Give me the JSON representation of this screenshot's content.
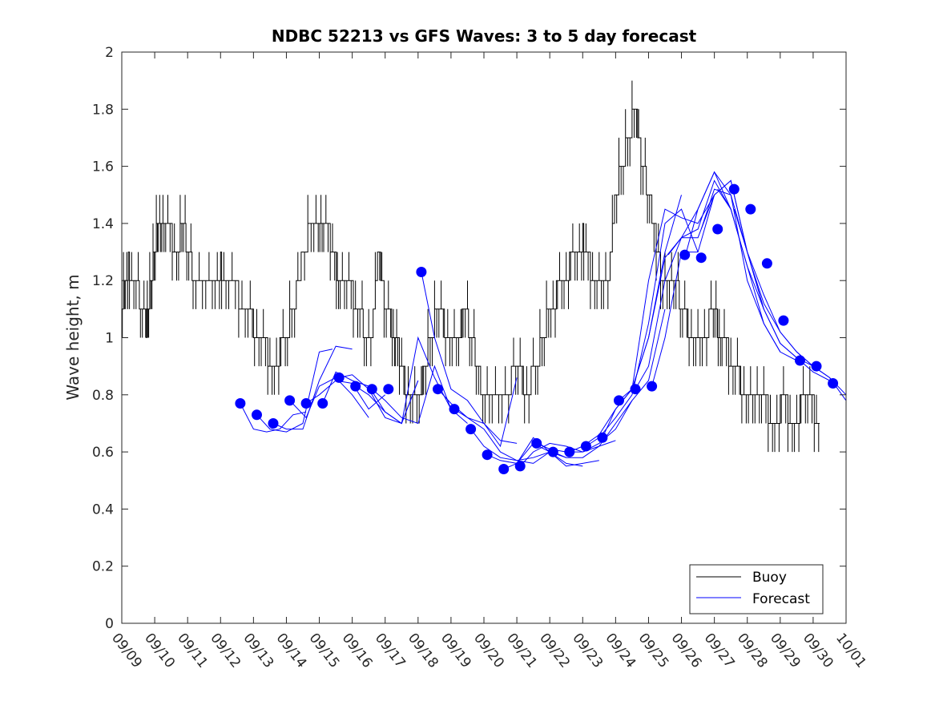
{
  "chart_data": {
    "type": "line",
    "title": "NDBC 52213 vs GFS Waves: 3 to 5 day forecast",
    "xlabel": "",
    "ylabel": "Wave height, m",
    "x_tick_labels": [
      "09/09",
      "09/10",
      "09/11",
      "09/12",
      "09/13",
      "09/14",
      "09/15",
      "09/16",
      "09/17",
      "09/18",
      "09/19",
      "09/20",
      "09/21",
      "09/22",
      "09/23",
      "09/24",
      "09/25",
      "09/26",
      "09/27",
      "09/28",
      "09/29",
      "09/30",
      "10/01"
    ],
    "xlim_days": [
      0,
      22
    ],
    "ylim": [
      0,
      2
    ],
    "y_ticks": [
      "0",
      "0.2",
      "0.4",
      "0.6",
      "0.8",
      "1",
      "1.2",
      "1.4",
      "1.6",
      "1.8",
      "2"
    ],
    "legend": [
      {
        "label": "Buoy",
        "color": "#000000"
      },
      {
        "label": "Forecast",
        "color": "#0000ff"
      }
    ],
    "legend_position": "bottom-right",
    "colors": {
      "buoy": "#000000",
      "forecast": "#0000ff",
      "axes": "#262626"
    },
    "series": [
      {
        "name": "Buoy",
        "x_days": [
          0,
          0.1,
          0.2,
          0.4,
          0.6,
          0.75,
          0.8,
          0.9,
          1,
          1.1,
          1.2,
          1.3,
          1.5,
          1.7,
          1.85,
          2,
          2.2,
          2.5,
          2.8,
          3,
          3.2,
          3.5,
          3.8,
          4,
          4.2,
          4.4,
          4.6,
          4.8,
          5,
          5.2,
          5.5,
          5.8,
          6,
          6.1,
          6.3,
          6.5,
          6.6,
          6.8,
          7,
          7.2,
          7.4,
          7.6,
          7.8,
          8,
          8.2,
          8.3,
          8.4,
          8.6,
          8.8,
          9,
          9.2,
          9.4,
          9.6,
          9.8,
          10,
          10.2,
          10.4,
          10.6,
          10.8,
          11,
          11.2,
          11.5,
          11.8,
          12,
          12.2,
          12.4,
          12.6,
          12.8,
          13,
          13.2,
          13.4,
          13.6,
          13.8,
          14,
          14.2,
          14.4,
          14.6,
          14.8,
          15,
          15.2,
          15.4,
          15.6,
          15.8,
          16,
          16.2,
          16.4,
          16.6,
          16.8,
          17,
          17.2,
          17.4,
          17.6,
          17.8,
          18,
          18.1,
          18.2,
          18.4,
          18.6,
          18.8,
          19,
          19.2,
          19.4,
          19.6,
          19.8,
          20,
          20.2,
          20.4,
          20.6,
          20.8,
          21,
          21.2
        ],
        "values": [
          1.1,
          1.2,
          1.25,
          1.2,
          1.1,
          1.05,
          1.1,
          1.2,
          1.3,
          1.4,
          1.35,
          1.4,
          1.35,
          1.3,
          1.4,
          1.3,
          1.2,
          1.15,
          1.2,
          1.25,
          1.2,
          1.15,
          1.1,
          1.05,
          1.0,
          0.95,
          0.9,
          0.95,
          1.0,
          1.1,
          1.3,
          1.4,
          1.45,
          1.4,
          1.35,
          1.25,
          1.2,
          1.2,
          1.15,
          1.1,
          1.0,
          1.05,
          1.3,
          1.1,
          1.05,
          1.0,
          0.95,
          0.85,
          0.8,
          0.8,
          0.9,
          1.0,
          1.1,
          1.05,
          1.0,
          0.95,
          1.1,
          1.0,
          0.9,
          0.8,
          0.75,
          0.8,
          0.85,
          0.9,
          0.85,
          0.85,
          0.9,
          1.0,
          1.1,
          1.15,
          1.2,
          1.25,
          1.3,
          1.35,
          1.25,
          1.2,
          1.15,
          1.2,
          1.5,
          1.6,
          1.7,
          1.8,
          1.6,
          1.5,
          1.35,
          1.2,
          1.15,
          1.2,
          1.1,
          1.05,
          1.0,
          1.0,
          1.05,
          1.1,
          1.05,
          1.0,
          0.95,
          0.9,
          0.85,
          0.85,
          0.8,
          0.75,
          0.75,
          0.7,
          0.75,
          0.75,
          0.7,
          0.75,
          0.8,
          0.75,
          0.7
        ]
      },
      {
        "name": "Forecast",
        "segments": [
          {
            "x_days": [
              3.6,
              4.0,
              4.4,
              4.8,
              5.2,
              5.6
            ],
            "values": [
              0.77,
              0.68,
              0.67,
              0.68,
              0.73,
              0.74
            ]
          },
          {
            "x_days": [
              4.1,
              4.5,
              5.0,
              5.5,
              6.0,
              6.4
            ],
            "values": [
              0.73,
              0.68,
              0.67,
              0.7,
              0.95,
              0.96
            ]
          },
          {
            "x_days": [
              4.6,
              5.0,
              5.5,
              6.0,
              6.5,
              7.0
            ],
            "values": [
              0.7,
              0.68,
              0.68,
              0.85,
              0.97,
              0.96
            ]
          },
          {
            "x_days": [
              5.1,
              5.6,
              6.0,
              6.5,
              7.0,
              7.5
            ],
            "values": [
              0.78,
              0.72,
              0.83,
              0.86,
              0.8,
              0.72
            ]
          },
          {
            "x_days": [
              5.6,
              6.0,
              6.5,
              7.0,
              7.5,
              8.0
            ],
            "values": [
              0.77,
              0.8,
              0.85,
              0.84,
              0.75,
              0.8
            ]
          },
          {
            "x_days": [
              6.1,
              6.5,
              7.0,
              7.5,
              8.0,
              8.5,
              9.0
            ],
            "values": [
              0.77,
              0.88,
              0.85,
              0.83,
              0.74,
              0.7,
              0.85
            ]
          },
          {
            "x_days": [
              6.6,
              7.0,
              7.5,
              8.0,
              8.5,
              9.0
            ],
            "values": [
              0.86,
              0.87,
              0.82,
              0.72,
              0.7,
              0.85
            ]
          },
          {
            "x_days": [
              7.1,
              7.5,
              8.0,
              8.5,
              9.0,
              9.5,
              10.0
            ],
            "values": [
              0.83,
              0.8,
              0.74,
              0.7,
              1.0,
              0.86,
              0.75
            ]
          },
          {
            "x_days": [
              7.6,
              8.0,
              8.5,
              9.0,
              9.5,
              10.0,
              10.5
            ],
            "values": [
              0.82,
              0.78,
              0.72,
              0.7,
              0.9,
              0.75,
              0.7
            ]
          },
          {
            "x_days": [
              9.1,
              9.5,
              10.0,
              10.5,
              11.0,
              11.5,
              12.0
            ],
            "values": [
              1.23,
              1.0,
              0.82,
              0.78,
              0.7,
              0.62,
              0.86
            ]
          },
          {
            "x_days": [
              9.6,
              10.0,
              10.5,
              11.0,
              11.5,
              12.0
            ],
            "values": [
              0.82,
              0.77,
              0.72,
              0.7,
              0.64,
              0.63
            ]
          },
          {
            "x_days": [
              10.1,
              10.5,
              11.0,
              11.5,
              12.0,
              12.5,
              13.0
            ],
            "values": [
              0.75,
              0.72,
              0.68,
              0.6,
              0.57,
              0.56,
              0.6
            ]
          },
          {
            "x_days": [
              10.6,
              11.0,
              11.5,
              12.0,
              12.5,
              13.0,
              13.5
            ],
            "values": [
              0.68,
              0.62,
              0.58,
              0.57,
              0.58,
              0.6,
              0.58
            ]
          },
          {
            "x_days": [
              11.1,
              11.5,
              12.0,
              12.5,
              13.0,
              13.5,
              14.0
            ],
            "values": [
              0.59,
              0.57,
              0.56,
              0.65,
              0.6,
              0.56,
              0.55
            ]
          },
          {
            "x_days": [
              11.6,
              12.0,
              12.5,
              13.0,
              13.5,
              14.0,
              14.5
            ],
            "values": [
              0.54,
              0.56,
              0.63,
              0.6,
              0.55,
              0.56,
              0.57
            ]
          },
          {
            "x_days": [
              12.1,
              12.5,
              13.0,
              13.5,
              14.0,
              14.5,
              15.0
            ],
            "values": [
              0.55,
              0.6,
              0.63,
              0.62,
              0.6,
              0.62,
              0.64
            ]
          },
          {
            "x_days": [
              12.6,
              13.0,
              13.5,
              14.0,
              14.5,
              15.0,
              15.5
            ],
            "values": [
              0.63,
              0.61,
              0.6,
              0.6,
              0.63,
              0.68,
              0.78
            ]
          },
          {
            "x_days": [
              13.1,
              13.5,
              14.0,
              14.5,
              15.0,
              15.5,
              16.0,
              16.5
            ],
            "values": [
              0.6,
              0.58,
              0.58,
              0.62,
              0.7,
              0.78,
              0.85,
              1.1
            ]
          },
          {
            "x_days": [
              13.6,
              14.0,
              14.5,
              15.0,
              15.5,
              16.0,
              16.5,
              17.0
            ],
            "values": [
              0.6,
              0.62,
              0.66,
              0.75,
              0.82,
              1.0,
              1.3,
              1.5
            ]
          },
          {
            "x_days": [
              14.1,
              14.5,
              15.0,
              15.5,
              16.0,
              16.5,
              17.0,
              17.5
            ],
            "values": [
              0.62,
              0.65,
              0.72,
              0.8,
              1.05,
              1.4,
              1.45,
              1.3
            ]
          },
          {
            "x_days": [
              14.6,
              15.0,
              15.5,
              16.0,
              16.5,
              17.0,
              17.5,
              18.0
            ],
            "values": [
              0.65,
              0.75,
              0.82,
              1.2,
              1.45,
              1.42,
              1.4,
              1.5
            ]
          },
          {
            "x_days": [
              15.1,
              15.5,
              16.0,
              16.5,
              17.0,
              17.5,
              18.0,
              18.5
            ],
            "values": [
              0.78,
              0.82,
              1.0,
              1.28,
              1.35,
              1.38,
              1.55,
              1.45
            ]
          },
          {
            "x_days": [
              15.6,
              16.0,
              16.5,
              17.0,
              17.5,
              18.0,
              18.5,
              19.0
            ],
            "values": [
              0.82,
              0.9,
              1.2,
              1.35,
              1.35,
              1.5,
              1.55,
              1.3
            ]
          },
          {
            "x_days": [
              16.1,
              16.5,
              17.0,
              17.5,
              18.0,
              18.5,
              19.0,
              19.5
            ],
            "values": [
              0.83,
              1.0,
              1.3,
              1.3,
              1.5,
              1.55,
              1.3,
              1.1
            ]
          },
          {
            "x_days": [
              16.6,
              17.0,
              17.5,
              18.0,
              18.5,
              19.0,
              19.5,
              20.0
            ],
            "values": [
              1.29,
              1.35,
              1.45,
              1.58,
              1.5,
              1.2,
              1.05,
              0.95
            ]
          },
          {
            "x_days": [
              17.1,
              17.5,
              18.0,
              18.5,
              19.0,
              19.5,
              20.0,
              20.5
            ],
            "values": [
              1.28,
              1.45,
              1.58,
              1.45,
              1.25,
              1.05,
              0.95,
              0.92
            ]
          },
          {
            "x_days": [
              17.6,
              18.0,
              18.5,
              19.0,
              19.5,
              20.0,
              20.5,
              21.0
            ],
            "values": [
              1.38,
              1.52,
              1.5,
              1.3,
              1.1,
              0.98,
              0.93,
              0.9
            ]
          },
          {
            "x_days": [
              18.1,
              18.5,
              19.0,
              19.5,
              20.0,
              20.5,
              21.0,
              21.5
            ],
            "values": [
              1.52,
              1.45,
              1.25,
              1.1,
              0.98,
              0.93,
              0.88,
              0.85
            ]
          },
          {
            "x_days": [
              18.6,
              19.0,
              19.5,
              20.0,
              20.5,
              21.0,
              21.5,
              22.0
            ],
            "values": [
              1.45,
              1.3,
              1.15,
              1.02,
              0.95,
              0.9,
              0.86,
              0.8
            ]
          },
          {
            "x_days": [
              19.1,
              19.5,
              20.0,
              20.5,
              21.0,
              21.5,
              22.0
            ],
            "values": [
              1.26,
              1.12,
              1.02,
              0.95,
              0.9,
              0.86,
              0.78
            ]
          }
        ],
        "markers": {
          "x_days": [
            3.6,
            4.1,
            4.6,
            5.1,
            5.6,
            6.1,
            6.6,
            7.1,
            7.6,
            8.1,
            9.1,
            9.6,
            10.1,
            10.6,
            11.1,
            11.6,
            12.1,
            12.6,
            13.1,
            13.6,
            14.1,
            14.6,
            15.1,
            15.6,
            16.1,
            17.1,
            17.6,
            18.1,
            18.6,
            19.1,
            19.6,
            20.1,
            20.6,
            21.1,
            21.6
          ],
          "values": [
            0.77,
            0.73,
            0.7,
            0.78,
            0.77,
            0.77,
            0.86,
            0.83,
            0.82,
            0.82,
            1.23,
            0.82,
            0.75,
            0.68,
            0.59,
            0.54,
            0.55,
            0.63,
            0.6,
            0.6,
            0.62,
            0.65,
            0.78,
            0.82,
            0.83,
            1.29,
            1.28,
            1.38,
            1.52,
            1.45,
            1.26,
            1.06,
            0.92,
            0.9,
            0.84
          ]
        }
      }
    ]
  }
}
